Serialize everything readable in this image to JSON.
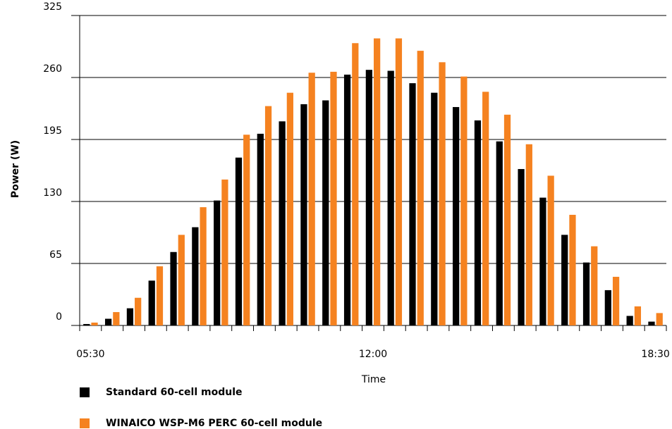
{
  "chart_data": {
    "type": "bar",
    "y_label": "Power (W)",
    "x_label": "Time",
    "categories": [
      "05:30",
      null,
      null,
      null,
      null,
      null,
      null,
      null,
      null,
      null,
      null,
      null,
      null,
      "12:00",
      null,
      null,
      null,
      null,
      null,
      null,
      null,
      null,
      null,
      null,
      null,
      null,
      "18:30"
    ],
    "series": [
      {
        "name": "Standard 60-cell module",
        "color": "#000000",
        "values": [
          1.5,
          7,
          18,
          47,
          77,
          103,
          131,
          176,
          201,
          214,
          232,
          236,
          263,
          268,
          267,
          254,
          244,
          229,
          215,
          193,
          164,
          134,
          95,
          66,
          37,
          10,
          4
        ]
      },
      {
        "name": "WINAICO WSP-M6 PERC 60-cell module",
        "color": "#f58220",
        "values": [
          3,
          14,
          29,
          62,
          95,
          124,
          153,
          200,
          230,
          244,
          265,
          266,
          296,
          301,
          301,
          288,
          276,
          261,
          245,
          221,
          190,
          157,
          116,
          83,
          51,
          20,
          13
        ]
      }
    ],
    "ylim": [
      0,
      325
    ],
    "yticks": [
      0,
      65,
      130,
      195,
      260,
      325
    ],
    "grid": true
  }
}
